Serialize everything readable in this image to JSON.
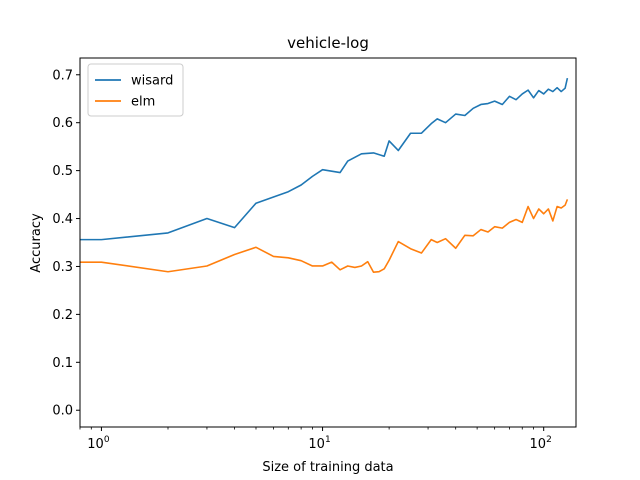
{
  "chart_data": {
    "type": "line",
    "title": "vehicle-log",
    "xlabel": "Size of training data",
    "ylabel": "Accuracy",
    "xscale": "log",
    "xlim": [
      0.8,
      140
    ],
    "ylim": [
      -0.035,
      0.735
    ],
    "yticks": [
      "0.0",
      "0.1",
      "0.2",
      "0.3",
      "0.4",
      "0.5",
      "0.6",
      "0.7"
    ],
    "xticks": [
      {
        "value": 1,
        "base": "10",
        "exp": "0"
      },
      {
        "value": 10,
        "base": "10",
        "exp": "1"
      },
      {
        "value": 100,
        "base": "10",
        "exp": "2"
      }
    ],
    "grid": false,
    "legend_position": "top-left",
    "series": [
      {
        "name": "wisard",
        "color": "#1f77b4",
        "x": [
          0.8,
          1,
          2,
          3,
          4,
          5,
          6,
          7,
          8,
          9,
          10,
          12,
          13,
          15,
          17,
          19,
          20,
          22,
          25,
          28,
          31,
          33,
          36,
          40,
          44,
          48,
          52,
          56,
          60,
          65,
          70,
          75,
          80,
          85,
          90,
          95,
          100,
          105,
          110,
          115,
          120,
          125,
          128
        ],
        "y": [
          0.356,
          0.356,
          0.37,
          0.4,
          0.381,
          0.432,
          0.445,
          0.456,
          0.47,
          0.488,
          0.502,
          0.496,
          0.52,
          0.535,
          0.537,
          0.53,
          0.562,
          0.542,
          0.578,
          0.578,
          0.598,
          0.608,
          0.6,
          0.618,
          0.615,
          0.63,
          0.638,
          0.64,
          0.645,
          0.638,
          0.655,
          0.648,
          0.66,
          0.668,
          0.652,
          0.667,
          0.66,
          0.67,
          0.665,
          0.673,
          0.665,
          0.672,
          0.693
        ]
      },
      {
        "name": "elm",
        "color": "#ff7f0e",
        "x": [
          0.8,
          1,
          2,
          3,
          4,
          5,
          6,
          7,
          8,
          9,
          10,
          11,
          12,
          13,
          14,
          15,
          16,
          17,
          18,
          19,
          20,
          22,
          25,
          28,
          31,
          33,
          36,
          40,
          44,
          48,
          52,
          56,
          60,
          65,
          70,
          75,
          80,
          85,
          90,
          95,
          100,
          105,
          110,
          115,
          120,
          125,
          128
        ],
        "y": [
          0.309,
          0.309,
          0.289,
          0.301,
          0.325,
          0.34,
          0.321,
          0.318,
          0.312,
          0.301,
          0.301,
          0.309,
          0.293,
          0.301,
          0.298,
          0.301,
          0.31,
          0.288,
          0.289,
          0.295,
          0.313,
          0.352,
          0.337,
          0.328,
          0.356,
          0.35,
          0.358,
          0.338,
          0.365,
          0.364,
          0.377,
          0.372,
          0.383,
          0.38,
          0.392,
          0.398,
          0.392,
          0.425,
          0.4,
          0.42,
          0.41,
          0.42,
          0.395,
          0.425,
          0.422,
          0.428,
          0.44
        ]
      }
    ]
  }
}
